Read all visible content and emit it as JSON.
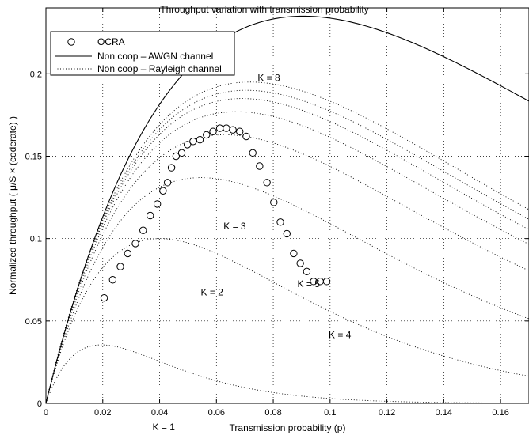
{
  "chart_data": {
    "type": "line",
    "title": "Throughput variation with transmission probability",
    "xlabel": "Transmission probability (p)",
    "ylabel": "Normalized throughput ( μ/S × (coderate) )",
    "xlim": [
      0,
      0.17
    ],
    "ylim": [
      0,
      0.24
    ],
    "xticks": [
      0,
      0.02,
      0.04,
      0.06,
      0.08,
      0.1,
      0.12,
      0.14,
      0.16
    ],
    "xtick_labels": [
      "0",
      "0.02",
      "0.04",
      "0.06",
      "0.08",
      "0.1",
      "0.12",
      "0.14",
      "0.16"
    ],
    "yticks": [
      0,
      0.05,
      0.1,
      0.15,
      0.2
    ],
    "ytick_labels": [
      "0",
      "0.05",
      "0.1",
      "0.15",
      "0.2"
    ],
    "grid": true,
    "legend_position": "top-left",
    "series": [
      {
        "name": "OCRA",
        "style": "markers-circle",
        "x": [
          0.0205,
          0.0235,
          0.0262,
          0.0288,
          0.0315,
          0.0342,
          0.0367,
          0.0392,
          0.0412,
          0.0428,
          0.0442,
          0.0458,
          0.0478,
          0.0498,
          0.0518,
          0.0542,
          0.0565,
          0.0588,
          0.0612,
          0.0635,
          0.0658,
          0.0682,
          0.0705,
          0.0728,
          0.0752,
          0.0778,
          0.0802,
          0.0825,
          0.0848,
          0.0872,
          0.0895,
          0.0918,
          0.0942,
          0.0965,
          0.0988
        ],
        "y": [
          0.064,
          0.075,
          0.083,
          0.091,
          0.097,
          0.105,
          0.114,
          0.121,
          0.129,
          0.134,
          0.143,
          0.15,
          0.152,
          0.157,
          0.159,
          0.16,
          0.163,
          0.165,
          0.167,
          0.167,
          0.166,
          0.165,
          0.162,
          0.152,
          0.144,
          0.134,
          0.122,
          0.11,
          0.103,
          0.091,
          0.085,
          0.08,
          0.074,
          0.074,
          0.074
        ]
      },
      {
        "name": "Non coop – AWGN channel",
        "style": "solid",
        "peak_p": 0.0905,
        "peak_y": 0.235
      },
      {
        "name": "Non coop – Rayleigh channel",
        "style": "dotted",
        "curves": [
          {
            "k": 1,
            "peak_p": 0.0195,
            "peak_y": 0.0355
          },
          {
            "k": 2,
            "peak_p": 0.04,
            "peak_y": 0.1
          },
          {
            "k": 3,
            "peak_p": 0.0545,
            "peak_y": 0.137
          },
          {
            "k": 4,
            "peak_p": 0.063,
            "peak_y": 0.163
          },
          {
            "k": 5,
            "peak_p": 0.067,
            "peak_y": 0.177
          },
          {
            "k": 6,
            "peak_p": 0.069,
            "peak_y": 0.185
          },
          {
            "k": 7,
            "peak_p": 0.0705,
            "peak_y": 0.19
          },
          {
            "k": 8,
            "peak_p": 0.0718,
            "peak_y": 0.195
          }
        ]
      }
    ],
    "annotations": [
      {
        "text": "K = 8",
        "x": 0.0745,
        "y": 0.1975
      },
      {
        "text": "K = 3",
        "x": 0.0625,
        "y": 0.1075
      },
      {
        "text": "K = 5",
        "x": 0.0885,
        "y": 0.0725
      },
      {
        "text": "K = 2",
        "x": 0.0545,
        "y": 0.0675
      },
      {
        "text": "K = 4",
        "x": 0.0995,
        "y": 0.0415
      },
      {
        "text": "K = 1",
        "x": 0.0375,
        "y": -0.0145
      }
    ]
  }
}
